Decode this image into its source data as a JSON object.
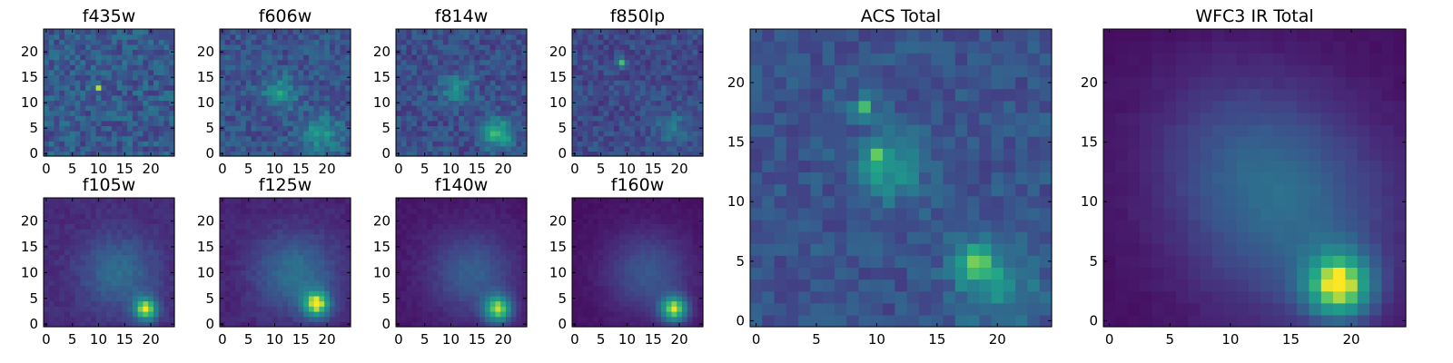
{
  "figure": {
    "background": "#ffffff"
  },
  "chart_data": [
    {
      "type": "heatmap",
      "title": "f435w",
      "grid": [
        25,
        25
      ],
      "xlim": [
        0,
        24
      ],
      "ylim": [
        0,
        24
      ],
      "xticks": [
        "0",
        "5",
        "10",
        "15",
        "20"
      ],
      "yticks": [
        "0",
        "5",
        "10",
        "15",
        "20"
      ],
      "colormap": "viridis",
      "background_level": 0.35,
      "noise": 0.3,
      "grid_lines": false,
      "sources": [
        {
          "x": 10,
          "y": 13,
          "amp": 0.5,
          "sigma": 0.5
        }
      ]
    },
    {
      "type": "heatmap",
      "title": "f606w",
      "grid": [
        25,
        25
      ],
      "xlim": [
        0,
        24
      ],
      "ylim": [
        0,
        24
      ],
      "xticks": [
        "0",
        "5",
        "10",
        "15",
        "20"
      ],
      "yticks": [
        "0",
        "5",
        "10",
        "15",
        "20"
      ],
      "colormap": "viridis",
      "background_level": 0.32,
      "noise": 0.25,
      "grid_lines": false,
      "sources": [
        {
          "x": 11,
          "y": 12,
          "amp": 0.35,
          "sigma": 2.2
        },
        {
          "x": 19,
          "y": 4,
          "amp": 0.35,
          "sigma": 2.5
        }
      ]
    },
    {
      "type": "heatmap",
      "title": "f814w",
      "grid": [
        25,
        25
      ],
      "xlim": [
        0,
        24
      ],
      "ylim": [
        0,
        24
      ],
      "xticks": [
        "0",
        "5",
        "10",
        "15",
        "20"
      ],
      "yticks": [
        "0",
        "5",
        "10",
        "15",
        "20"
      ],
      "colormap": "viridis",
      "background_level": 0.3,
      "noise": 0.25,
      "grid_lines": false,
      "sources": [
        {
          "x": 11,
          "y": 13,
          "amp": 0.3,
          "sigma": 2.0
        },
        {
          "x": 19,
          "y": 4,
          "amp": 0.55,
          "sigma": 2.0
        }
      ]
    },
    {
      "type": "heatmap",
      "title": "f850lp",
      "grid": [
        25,
        25
      ],
      "xlim": [
        0,
        24
      ],
      "ylim": [
        0,
        24
      ],
      "xticks": [
        "0",
        "5",
        "10",
        "15",
        "20"
      ],
      "yticks": [
        "0",
        "5",
        "10",
        "15",
        "20"
      ],
      "colormap": "viridis",
      "background_level": 0.28,
      "noise": 0.22,
      "grid_lines": false,
      "sources": [
        {
          "x": 9,
          "y": 18,
          "amp": 0.6,
          "sigma": 0.6
        },
        {
          "x": 19,
          "y": 5,
          "amp": 0.2,
          "sigma": 2.5
        }
      ]
    },
    {
      "type": "heatmap",
      "title": "ACS Total",
      "grid": [
        25,
        25
      ],
      "xlim": [
        0,
        24
      ],
      "ylim": [
        0,
        24
      ],
      "xticks": [
        "0",
        "5",
        "10",
        "15",
        "20"
      ],
      "yticks": [
        "0",
        "5",
        "10",
        "15",
        "20"
      ],
      "colormap": "viridis",
      "background_level": 0.32,
      "noise": 0.2,
      "grid_lines": false,
      "sources": [
        {
          "x": 11,
          "y": 13,
          "amp": 0.35,
          "sigma": 2.0
        },
        {
          "x": 10,
          "y": 14,
          "amp": 0.35,
          "sigma": 0.6
        },
        {
          "x": 9,
          "y": 18,
          "amp": 0.4,
          "sigma": 0.6
        },
        {
          "x": 18,
          "y": 5,
          "amp": 0.45,
          "sigma": 1.2
        },
        {
          "x": 20,
          "y": 3,
          "amp": 0.3,
          "sigma": 2.2
        }
      ]
    },
    {
      "type": "heatmap",
      "title": "WFC3 IR Total",
      "grid": [
        25,
        25
      ],
      "xlim": [
        0,
        24
      ],
      "ylim": [
        0,
        24
      ],
      "xticks": [
        "0",
        "5",
        "10",
        "15",
        "20"
      ],
      "yticks": [
        "0",
        "5",
        "10",
        "15",
        "20"
      ],
      "colormap": "viridis",
      "background_level": 0.05,
      "noise": 0.03,
      "grid_lines": false,
      "sources": [
        {
          "x": 19,
          "y": 3,
          "amp": 0.85,
          "sigma": 2.0
        },
        {
          "x": 15,
          "y": 9,
          "amp": 0.35,
          "sigma": 6.0
        },
        {
          "x": 10,
          "y": 15,
          "amp": 0.15,
          "sigma": 5.0
        }
      ]
    },
    {
      "type": "heatmap",
      "title": "f105w",
      "grid": [
        25,
        25
      ],
      "xlim": [
        0,
        24
      ],
      "ylim": [
        0,
        24
      ],
      "xticks": [
        "0",
        "5",
        "10",
        "15",
        "20"
      ],
      "yticks": [
        "0",
        "5",
        "10",
        "15",
        "20"
      ],
      "colormap": "viridis",
      "background_level": 0.15,
      "noise": 0.08,
      "grid_lines": false,
      "sources": [
        {
          "x": 19,
          "y": 3,
          "amp": 0.8,
          "sigma": 1.6
        },
        {
          "x": 14,
          "y": 10,
          "amp": 0.3,
          "sigma": 5.0
        }
      ]
    },
    {
      "type": "heatmap",
      "title": "f125w",
      "grid": [
        25,
        25
      ],
      "xlim": [
        0,
        24
      ],
      "ylim": [
        0,
        24
      ],
      "xticks": [
        "0",
        "5",
        "10",
        "15",
        "20"
      ],
      "yticks": [
        "0",
        "5",
        "10",
        "15",
        "20"
      ],
      "colormap": "viridis",
      "background_level": 0.12,
      "noise": 0.07,
      "grid_lines": false,
      "sources": [
        {
          "x": 18,
          "y": 4,
          "amp": 0.8,
          "sigma": 1.8
        },
        {
          "x": 14,
          "y": 10,
          "amp": 0.35,
          "sigma": 5.5
        }
      ]
    },
    {
      "type": "heatmap",
      "title": "f140w",
      "grid": [
        25,
        25
      ],
      "xlim": [
        0,
        24
      ],
      "ylim": [
        0,
        24
      ],
      "xticks": [
        "0",
        "5",
        "10",
        "15",
        "20"
      ],
      "yticks": [
        "0",
        "5",
        "10",
        "15",
        "20"
      ],
      "colormap": "viridis",
      "background_level": 0.08,
      "noise": 0.05,
      "grid_lines": false,
      "sources": [
        {
          "x": 19,
          "y": 3,
          "amp": 0.8,
          "sigma": 1.9
        },
        {
          "x": 14,
          "y": 10,
          "amp": 0.3,
          "sigma": 5.5
        }
      ]
    },
    {
      "type": "heatmap",
      "title": "f160w",
      "grid": [
        25,
        25
      ],
      "xlim": [
        0,
        24
      ],
      "ylim": [
        0,
        24
      ],
      "xticks": [
        "0",
        "5",
        "10",
        "15",
        "20"
      ],
      "yticks": [
        "0",
        "5",
        "10",
        "15",
        "20"
      ],
      "colormap": "viridis",
      "background_level": 0.06,
      "noise": 0.04,
      "grid_lines": false,
      "sources": [
        {
          "x": 19,
          "y": 3,
          "amp": 0.85,
          "sigma": 1.8
        },
        {
          "x": 14,
          "y": 10,
          "amp": 0.28,
          "sigma": 5.5
        }
      ]
    }
  ]
}
